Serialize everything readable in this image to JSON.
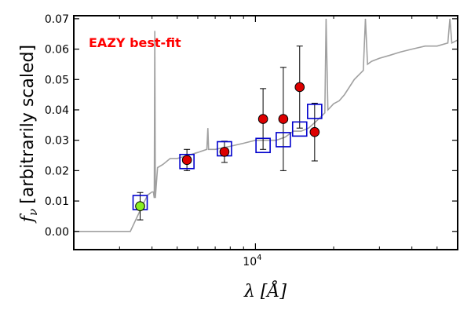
{
  "chart_data": {
    "type": "scatter",
    "title": "",
    "xlabel": "λ [Å]",
    "ylabel_symbol": "f",
    "ylabel_subscript": "ν",
    "ylabel_text": "[arbitrarily scaled]",
    "x_scale": "log",
    "xlim": [
      2000,
      60000
    ],
    "ylim": [
      -0.006,
      0.071
    ],
    "y_ticks": [
      0.0,
      0.01,
      0.02,
      0.03,
      0.04,
      0.05,
      0.06,
      0.07
    ],
    "y_tick_labels": [
      "0.00",
      "0.01",
      "0.02",
      "0.03",
      "0.04",
      "0.05",
      "0.06",
      "0.07"
    ],
    "x_ticks": [
      10000
    ],
    "x_tick_labels": [
      {
        "base": "10",
        "exp": "4"
      }
    ],
    "grid": false,
    "annotation": {
      "text": "EAZY best-fit",
      "color": "#ff0000"
    },
    "series": [
      {
        "kind": "template",
        "color": "#a0a0a0",
        "x": [
          2000,
          3300,
          3700,
          3850,
          4000,
          4050,
          4080,
          4100,
          4120,
          4200,
          4400,
          4700,
          5000,
          5500,
          6000,
          6500,
          6560,
          6600,
          7000,
          8000,
          9000,
          10000,
          11000,
          12000,
          13000,
          13500,
          14000,
          15000,
          16000,
          17000,
          17500,
          18000,
          18500,
          18700,
          19000,
          20000,
          21000,
          22000,
          24000,
          26000,
          26500,
          27000,
          28000,
          30000,
          33000,
          36000,
          40000,
          45000,
          50000,
          55000,
          56000,
          57000,
          60000
        ],
        "y": [
          0.0,
          0.0,
          0.009,
          0.012,
          0.013,
          0.013,
          0.011,
          0.066,
          0.011,
          0.021,
          0.022,
          0.024,
          0.024,
          0.025,
          0.026,
          0.027,
          0.034,
          0.027,
          0.027,
          0.028,
          0.029,
          0.03,
          0.03,
          0.03,
          0.031,
          0.032,
          0.033,
          0.033,
          0.034,
          0.036,
          0.037,
          0.038,
          0.039,
          0.07,
          0.04,
          0.042,
          0.043,
          0.045,
          0.05,
          0.053,
          0.07,
          0.055,
          0.056,
          0.057,
          0.058,
          0.059,
          0.06,
          0.061,
          0.061,
          0.062,
          0.07,
          0.062,
          0.063
        ]
      },
      {
        "kind": "model_photometry",
        "marker": "open-square",
        "color": "#0000cc",
        "x": [
          3600,
          5450,
          7600,
          10700,
          12800,
          14800,
          16900
        ],
        "y": [
          0.0095,
          0.023,
          0.0272,
          0.0283,
          0.0302,
          0.0337,
          0.0395
        ]
      },
      {
        "kind": "observed",
        "marker": "filled-circle",
        "x": [
          3600,
          5450,
          7600,
          10700,
          12800,
          14800,
          16900
        ],
        "y": [
          0.0083,
          0.0235,
          0.0262,
          0.037,
          0.037,
          0.0475,
          0.0327
        ],
        "yerr": [
          0.0045,
          0.0035,
          0.0035,
          0.01,
          0.017,
          0.0135,
          0.0095
        ],
        "colors": [
          "#88ee22",
          "#dd0000",
          "#dd0000",
          "#dd0000",
          "#dd0000",
          "#dd0000",
          "#dd0000"
        ]
      }
    ]
  }
}
